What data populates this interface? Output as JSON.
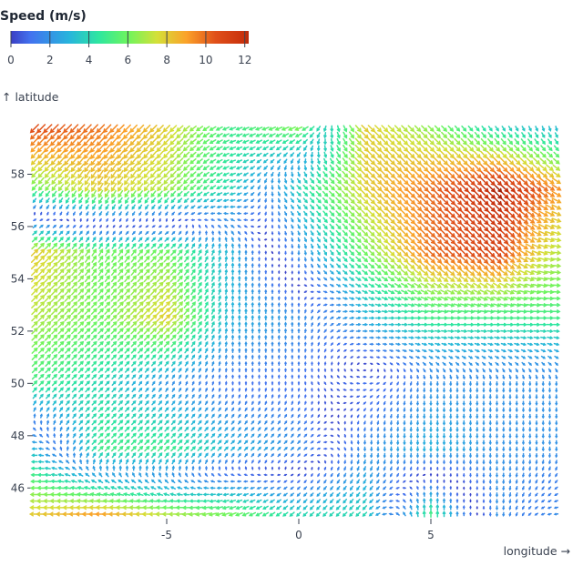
{
  "chart_data": {
    "type": "vector",
    "legend": {
      "title": "Speed (m/s)",
      "ticks": [
        "0",
        "2",
        "4",
        "6",
        "8",
        "10",
        "12"
      ],
      "domain": [
        0,
        12.2
      ],
      "colors": [
        [
          0,
          "#3b3fc4"
        ],
        [
          1,
          "#4272ef"
        ],
        [
          3,
          "#27b5dc"
        ],
        [
          4.5,
          "#2ee6a0"
        ],
        [
          6,
          "#6ef55e"
        ],
        [
          7.5,
          "#d4e038"
        ],
        [
          9,
          "#fba22a"
        ],
        [
          10.5,
          "#e0501a"
        ],
        [
          12,
          "#c8300c"
        ],
        [
          13,
          "#7a0d02"
        ]
      ]
    },
    "xlabel": "longitude →",
    "ylabel": "↑ latitude",
    "xlim": [
      -10,
      10
    ],
    "ylim": [
      45,
      60
    ],
    "xticks": [
      "-5",
      "0",
      "5"
    ],
    "yticks": [
      "46",
      "48",
      "50",
      "52",
      "54",
      "56",
      "58"
    ],
    "grid": false,
    "sample_lon": [
      -10,
      -7.5,
      -5,
      -2.5,
      0,
      2.5,
      5,
      7.5,
      10
    ],
    "sample_lat": [
      45,
      47.5,
      50,
      52.5,
      55,
      57.5,
      60
    ],
    "speed": [
      [
        8,
        9,
        7,
        6,
        4,
        4,
        5,
        2,
        2
      ],
      [
        3,
        5,
        5,
        3,
        2,
        2,
        3,
        2,
        2
      ],
      [
        5,
        4,
        2,
        1,
        1,
        1,
        2,
        2,
        2
      ],
      [
        7,
        6,
        8,
        3,
        2,
        3,
        5,
        5,
        5
      ],
      [
        8,
        6,
        6,
        3,
        2,
        6,
        10,
        11,
        7
      ],
      [
        6,
        8,
        7,
        4,
        4,
        8,
        10,
        12.5,
        9
      ],
      [
        11,
        10,
        8,
        5,
        7,
        8,
        6,
        3,
        3
      ]
    ],
    "direction_deg": [
      [
        180,
        180,
        180,
        200,
        225,
        225,
        90,
        270,
        180
      ],
      [
        180,
        45,
        45,
        45,
        45,
        270,
        270,
        270,
        270
      ],
      [
        45,
        45,
        60,
        90,
        90,
        180,
        270,
        270,
        270
      ],
      [
        45,
        45,
        45,
        90,
        90,
        0,
        0,
        0,
        0
      ],
      [
        45,
        60,
        45,
        90,
        270,
        315,
        315,
        315,
        0
      ],
      [
        230,
        240,
        230,
        200,
        315,
        315,
        315,
        315,
        330
      ],
      [
        225,
        225,
        225,
        200,
        200,
        315,
        315,
        300,
        270
      ]
    ]
  }
}
